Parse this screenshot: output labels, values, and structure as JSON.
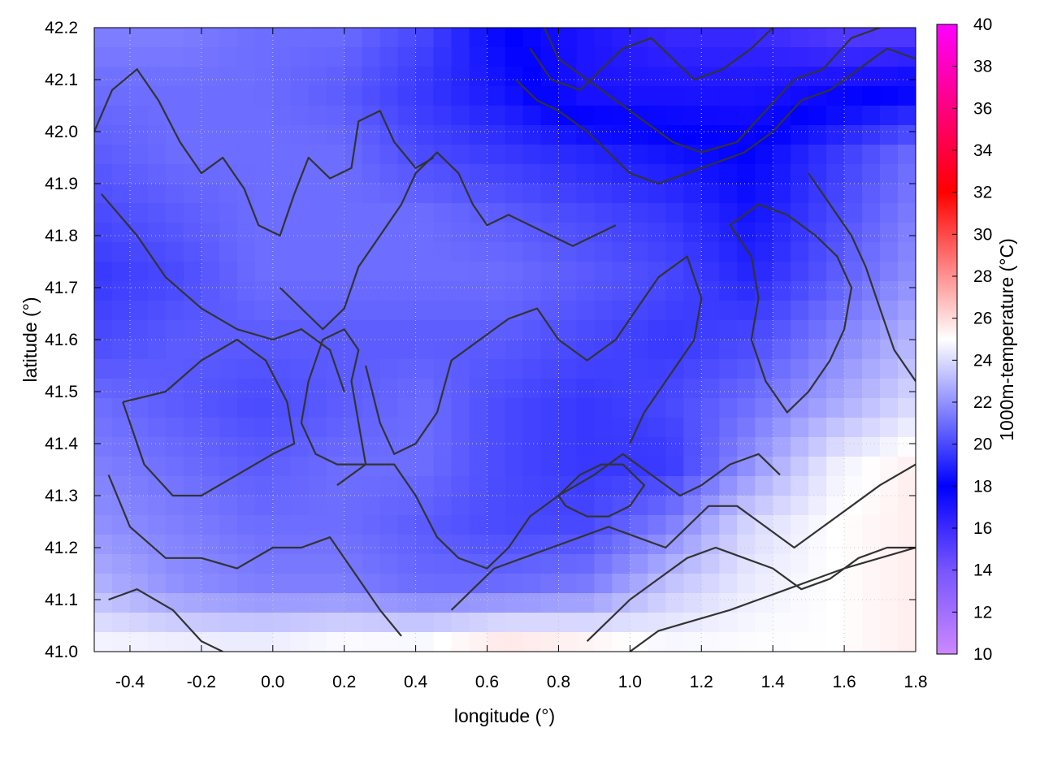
{
  "chart_data": {
    "type": "heatmap",
    "title": "",
    "xlabel": "longitude (°)",
    "ylabel": "latitude (°)",
    "colorbar_label": "1000m-temperature (°C)",
    "xlim": [
      -0.5,
      1.8
    ],
    "ylim": [
      41.0,
      42.2
    ],
    "x_ticks": [
      "-0.4",
      "-0.2",
      "0.0",
      "0.2",
      "0.4",
      "0.6",
      "0.8",
      "1.0",
      "1.2",
      "1.4",
      "1.6",
      "1.8"
    ],
    "y_ticks": [
      "41.0",
      "41.1",
      "41.2",
      "41.3",
      "41.4",
      "41.5",
      "41.6",
      "41.7",
      "41.8",
      "41.9",
      "42.0",
      "42.1",
      "42.2"
    ],
    "colorbar_range": [
      10,
      40
    ],
    "colorbar_ticks": [
      "10",
      "12",
      "14",
      "16",
      "18",
      "20",
      "22",
      "24",
      "26",
      "28",
      "30",
      "32",
      "34",
      "36",
      "38",
      "40"
    ],
    "colorscale": [
      {
        "value": 10,
        "color": "#cc88ff"
      },
      {
        "value": 14,
        "color": "#7755ff"
      },
      {
        "value": 18,
        "color": "#0000ff"
      },
      {
        "value": 25,
        "color": "#ffffff"
      },
      {
        "value": 32,
        "color": "#ff0000"
      },
      {
        "value": 40,
        "color": "#ff00ff"
      }
    ],
    "grid": true,
    "contour_color": "#333333",
    "temperature_field": {
      "lon": [
        -0.5,
        -0.27,
        -0.04,
        0.19,
        0.42,
        0.65,
        0.88,
        1.11,
        1.34,
        1.57,
        1.8
      ],
      "lat": [
        42.2,
        42.08,
        41.96,
        41.84,
        41.72,
        41.6,
        41.48,
        41.36,
        41.24,
        41.12,
        41.0
      ],
      "values": [
        [
          21.5,
          21.5,
          21.0,
          21.0,
          20.0,
          18.0,
          17.0,
          16.0,
          16.0,
          15.0,
          15.0
        ],
        [
          21.0,
          21.0,
          21.0,
          20.5,
          19.5,
          18.5,
          17.0,
          17.0,
          17.0,
          17.5,
          18.0
        ],
        [
          20.5,
          21.0,
          21.0,
          21.0,
          20.0,
          19.5,
          19.0,
          18.5,
          18.0,
          19.5,
          21.0
        ],
        [
          20.0,
          20.5,
          21.0,
          21.0,
          21.0,
          20.5,
          20.0,
          19.5,
          18.5,
          20.0,
          21.5
        ],
        [
          19.5,
          20.0,
          21.0,
          21.0,
          21.0,
          21.0,
          20.5,
          20.0,
          19.0,
          20.5,
          22.0
        ],
        [
          20.0,
          20.5,
          20.5,
          20.5,
          20.5,
          20.5,
          20.0,
          19.5,
          20.0,
          21.5,
          23.0
        ],
        [
          21.0,
          20.5,
          20.0,
          20.5,
          21.0,
          20.0,
          19.5,
          20.0,
          21.0,
          22.5,
          24.0
        ],
        [
          21.5,
          21.0,
          20.5,
          21.0,
          21.0,
          20.0,
          19.5,
          19.5,
          22.0,
          24.5,
          25.5
        ],
        [
          22.0,
          21.5,
          21.0,
          21.0,
          20.5,
          20.0,
          20.0,
          21.5,
          24.0,
          25.0,
          25.5
        ],
        [
          23.0,
          22.0,
          21.5,
          21.5,
          21.0,
          21.0,
          21.5,
          23.5,
          24.5,
          25.0,
          25.5
        ],
        [
          25.0,
          25.0,
          25.0,
          25.5,
          25.5,
          26.5,
          26.0,
          25.0,
          25.0,
          25.0,
          25.5
        ]
      ]
    },
    "contour_lines": [
      [
        [
          -0.5,
          42.0
        ],
        [
          -0.45,
          42.08
        ],
        [
          -0.38,
          42.12
        ],
        [
          -0.32,
          42.06
        ],
        [
          -0.26,
          41.98
        ],
        [
          -0.2,
          41.92
        ],
        [
          -0.14,
          41.95
        ],
        [
          -0.08,
          41.89
        ],
        [
          -0.04,
          41.82
        ],
        [
          0.02,
          41.8
        ],
        [
          0.06,
          41.88
        ],
        [
          0.1,
          41.95
        ],
        [
          0.16,
          41.91
        ],
        [
          0.22,
          41.93
        ],
        [
          0.24,
          42.02
        ],
        [
          0.3,
          42.04
        ],
        [
          0.34,
          41.98
        ],
        [
          0.4,
          41.93
        ],
        [
          0.45,
          41.95
        ]
      ],
      [
        [
          -0.48,
          41.88
        ],
        [
          -0.38,
          41.8
        ],
        [
          -0.3,
          41.72
        ],
        [
          -0.2,
          41.66
        ],
        [
          -0.1,
          41.62
        ],
        [
          0.0,
          41.6
        ],
        [
          0.08,
          41.62
        ],
        [
          0.16,
          41.58
        ],
        [
          0.2,
          41.5
        ]
      ],
      [
        [
          -0.42,
          41.48
        ],
        [
          -0.36,
          41.36
        ],
        [
          -0.28,
          41.3
        ],
        [
          -0.2,
          41.3
        ],
        [
          -0.1,
          41.34
        ],
        [
          0.0,
          41.38
        ],
        [
          0.06,
          41.4
        ],
        [
          0.04,
          41.48
        ],
        [
          -0.02,
          41.56
        ],
        [
          -0.1,
          41.6
        ],
        [
          -0.2,
          41.56
        ],
        [
          -0.3,
          41.5
        ],
        [
          -0.42,
          41.48
        ]
      ],
      [
        [
          -0.46,
          41.34
        ],
        [
          -0.4,
          41.24
        ],
        [
          -0.3,
          41.18
        ],
        [
          -0.2,
          41.18
        ],
        [
          -0.1,
          41.16
        ],
        [
          0.0,
          41.2
        ],
        [
          0.08,
          41.2
        ],
        [
          0.16,
          41.22
        ],
        [
          0.24,
          41.14
        ],
        [
          0.3,
          41.08
        ],
        [
          0.36,
          41.03
        ]
      ],
      [
        [
          -0.46,
          41.1
        ],
        [
          -0.38,
          41.12
        ],
        [
          -0.28,
          41.08
        ],
        [
          -0.2,
          41.02
        ],
        [
          -0.14,
          41.0
        ]
      ],
      [
        [
          0.26,
          41.55
        ],
        [
          0.3,
          41.44
        ],
        [
          0.34,
          41.38
        ],
        [
          0.4,
          41.4
        ],
        [
          0.46,
          41.46
        ],
        [
          0.5,
          41.56
        ],
        [
          0.58,
          41.6
        ],
        [
          0.66,
          41.64
        ],
        [
          0.74,
          41.66
        ],
        [
          0.8,
          41.6
        ],
        [
          0.88,
          41.56
        ],
        [
          0.96,
          41.6
        ],
        [
          1.02,
          41.66
        ],
        [
          1.08,
          41.72
        ],
        [
          1.16,
          41.76
        ],
        [
          1.2,
          41.68
        ],
        [
          1.18,
          41.6
        ],
        [
          1.12,
          41.54
        ],
        [
          1.04,
          41.46
        ],
        [
          1.0,
          41.4
        ]
      ],
      [
        [
          0.18,
          41.32
        ],
        [
          0.26,
          41.36
        ],
        [
          0.34,
          41.36
        ],
        [
          0.4,
          41.3
        ],
        [
          0.46,
          41.22
        ],
        [
          0.52,
          41.18
        ],
        [
          0.6,
          41.16
        ],
        [
          0.66,
          41.2
        ],
        [
          0.72,
          41.26
        ],
        [
          0.8,
          41.3
        ],
        [
          0.9,
          41.34
        ],
        [
          0.98,
          41.38
        ],
        [
          1.06,
          41.34
        ],
        [
          1.14,
          41.3
        ],
        [
          1.2,
          41.32
        ],
        [
          1.28,
          41.36
        ],
        [
          1.36,
          41.38
        ],
        [
          1.42,
          41.34
        ]
      ],
      [
        [
          0.5,
          41.08
        ],
        [
          0.56,
          41.12
        ],
        [
          0.62,
          41.16
        ],
        [
          0.7,
          41.18
        ],
        [
          0.78,
          41.2
        ],
        [
          0.86,
          41.22
        ],
        [
          0.94,
          41.24
        ],
        [
          1.02,
          41.22
        ],
        [
          1.1,
          41.2
        ],
        [
          1.16,
          41.24
        ],
        [
          1.22,
          41.28
        ],
        [
          1.3,
          41.28
        ],
        [
          1.38,
          41.24
        ],
        [
          1.46,
          41.2
        ],
        [
          1.54,
          41.24
        ],
        [
          1.62,
          41.28
        ],
        [
          1.7,
          41.32
        ],
        [
          1.8,
          41.36
        ]
      ],
      [
        [
          0.88,
          41.02
        ],
        [
          0.94,
          41.06
        ],
        [
          1.0,
          41.1
        ],
        [
          1.08,
          41.14
        ],
        [
          1.16,
          41.18
        ],
        [
          1.24,
          41.2
        ],
        [
          1.32,
          41.18
        ],
        [
          1.4,
          41.16
        ],
        [
          1.48,
          41.12
        ],
        [
          1.56,
          41.14
        ],
        [
          1.64,
          41.18
        ],
        [
          1.72,
          41.2
        ],
        [
          1.8,
          41.2
        ]
      ],
      [
        [
          1.0,
          41.0
        ],
        [
          1.08,
          41.04
        ],
        [
          1.18,
          41.06
        ],
        [
          1.28,
          41.08
        ],
        [
          1.36,
          41.1
        ],
        [
          1.44,
          41.12
        ],
        [
          1.52,
          41.14
        ],
        [
          1.6,
          41.16
        ],
        [
          1.7,
          41.18
        ],
        [
          1.8,
          41.2
        ]
      ],
      [
        [
          0.76,
          42.2
        ],
        [
          0.8,
          42.14
        ],
        [
          0.88,
          42.1
        ],
        [
          0.96,
          42.06
        ],
        [
          1.04,
          42.02
        ],
        [
          1.12,
          41.98
        ],
        [
          1.2,
          41.96
        ],
        [
          1.3,
          41.98
        ],
        [
          1.38,
          42.04
        ],
        [
          1.46,
          42.1
        ],
        [
          1.54,
          42.12
        ],
        [
          1.62,
          42.18
        ],
        [
          1.7,
          42.2
        ]
      ],
      [
        [
          0.68,
          42.1
        ],
        [
          0.74,
          42.06
        ],
        [
          0.8,
          42.04
        ],
        [
          0.88,
          42.0
        ],
        [
          0.94,
          41.96
        ],
        [
          1.0,
          41.92
        ],
        [
          1.08,
          41.9
        ],
        [
          1.16,
          41.92
        ],
        [
          1.24,
          41.94
        ],
        [
          1.32,
          41.96
        ],
        [
          1.4,
          42.0
        ],
        [
          1.48,
          42.06
        ],
        [
          1.56,
          42.08
        ],
        [
          1.64,
          42.12
        ],
        [
          1.72,
          42.16
        ],
        [
          1.8,
          42.14
        ]
      ],
      [
        [
          0.72,
          42.16
        ],
        [
          0.78,
          42.1
        ],
        [
          0.86,
          42.08
        ],
        [
          0.92,
          42.12
        ],
        [
          0.98,
          42.16
        ],
        [
          1.06,
          42.18
        ],
        [
          1.12,
          42.14
        ],
        [
          1.18,
          42.1
        ],
        [
          1.26,
          42.12
        ],
        [
          1.34,
          42.16
        ],
        [
          1.4,
          42.2
        ]
      ],
      [
        [
          1.28,
          41.82
        ],
        [
          1.34,
          41.76
        ],
        [
          1.36,
          41.68
        ],
        [
          1.34,
          41.6
        ],
        [
          1.38,
          41.52
        ],
        [
          1.44,
          41.46
        ],
        [
          1.5,
          41.5
        ],
        [
          1.56,
          41.56
        ],
        [
          1.6,
          41.62
        ],
        [
          1.62,
          41.7
        ],
        [
          1.58,
          41.76
        ],
        [
          1.52,
          41.8
        ],
        [
          1.44,
          41.84
        ],
        [
          1.36,
          41.86
        ],
        [
          1.28,
          41.82
        ]
      ],
      [
        [
          1.5,
          41.92
        ],
        [
          1.56,
          41.86
        ],
        [
          1.62,
          41.8
        ],
        [
          1.66,
          41.74
        ],
        [
          1.7,
          41.66
        ],
        [
          1.74,
          41.58
        ],
        [
          1.8,
          41.52
        ]
      ],
      [
        [
          0.02,
          41.7
        ],
        [
          0.08,
          41.66
        ],
        [
          0.14,
          41.62
        ],
        [
          0.2,
          41.66
        ],
        [
          0.24,
          41.74
        ],
        [
          0.3,
          41.8
        ],
        [
          0.36,
          41.86
        ],
        [
          0.4,
          41.92
        ],
        [
          0.46,
          41.96
        ],
        [
          0.52,
          41.92
        ],
        [
          0.56,
          41.86
        ],
        [
          0.6,
          41.82
        ],
        [
          0.66,
          41.84
        ],
        [
          0.72,
          41.82
        ],
        [
          0.78,
          41.8
        ],
        [
          0.84,
          41.78
        ],
        [
          0.9,
          41.8
        ],
        [
          0.96,
          41.82
        ]
      ],
      [
        [
          0.26,
          41.36
        ],
        [
          0.24,
          41.44
        ],
        [
          0.22,
          41.52
        ],
        [
          0.24,
          41.58
        ],
        [
          0.2,
          41.62
        ],
        [
          0.14,
          41.6
        ],
        [
          0.1,
          41.52
        ],
        [
          0.08,
          41.44
        ],
        [
          0.12,
          41.38
        ],
        [
          0.18,
          41.36
        ],
        [
          0.26,
          41.36
        ]
      ],
      [
        [
          0.8,
          41.3
        ],
        [
          0.86,
          41.34
        ],
        [
          0.92,
          41.36
        ],
        [
          0.98,
          41.36
        ],
        [
          1.04,
          41.32
        ],
        [
          1.0,
          41.28
        ],
        [
          0.94,
          41.26
        ],
        [
          0.88,
          41.26
        ],
        [
          0.82,
          41.28
        ],
        [
          0.8,
          41.3
        ]
      ]
    ]
  }
}
